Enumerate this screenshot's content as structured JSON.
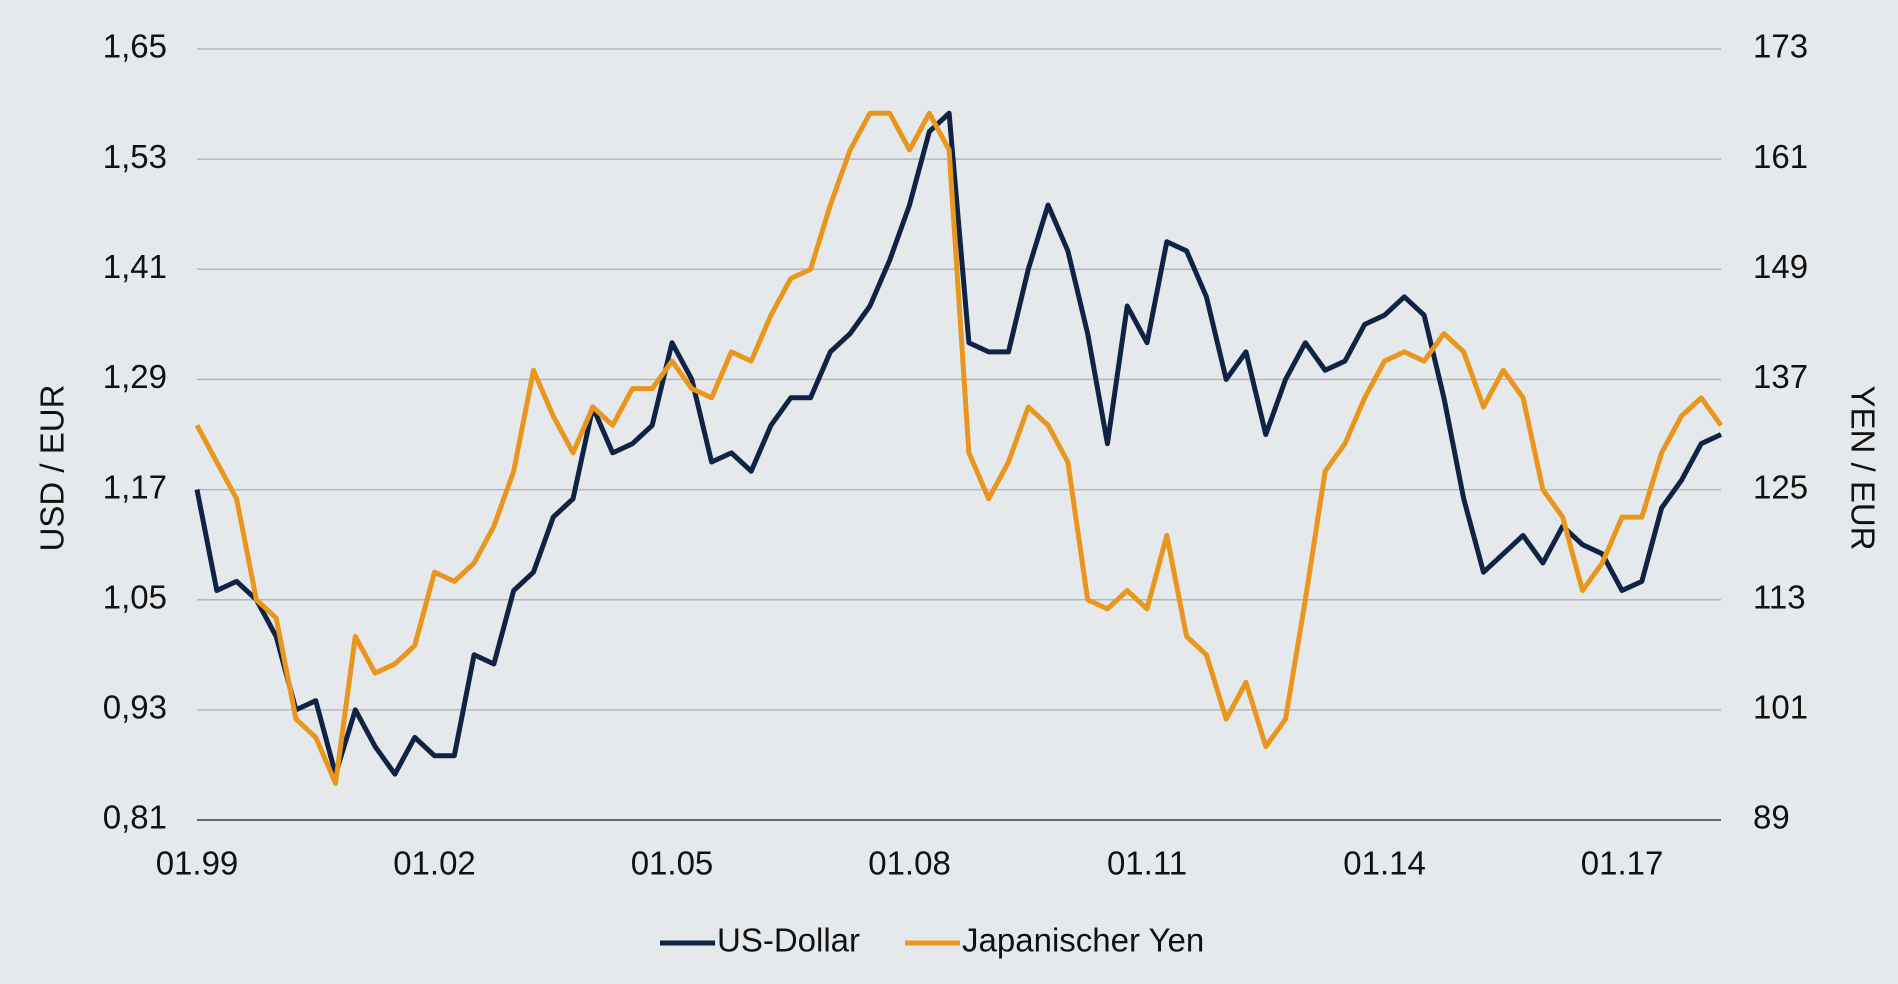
{
  "chart_data": {
    "type": "line",
    "y_label": "USD / EUR",
    "y2_label": "YEN / EUR",
    "x": [
      "01.99",
      "04.99",
      "07.99",
      "10.99",
      "01.00",
      "04.00",
      "07.00",
      "10.00",
      "01.01",
      "04.01",
      "07.01",
      "10.01",
      "01.02",
      "04.02",
      "07.02",
      "10.02",
      "01.03",
      "04.03",
      "07.03",
      "10.03",
      "01.04",
      "04.04",
      "07.04",
      "10.04",
      "01.05",
      "04.05",
      "07.05",
      "10.05",
      "01.06",
      "04.06",
      "07.06",
      "10.06",
      "01.07",
      "04.07",
      "07.07",
      "10.07",
      "01.08",
      "04.08",
      "07.08",
      "10.08",
      "01.09",
      "04.09",
      "07.09",
      "10.09",
      "01.10",
      "04.10",
      "07.10",
      "10.10",
      "01.11",
      "04.11",
      "07.11",
      "10.11",
      "01.12",
      "04.12",
      "07.12",
      "10.12",
      "01.13",
      "04.13",
      "07.13",
      "10.13",
      "01.14",
      "04.14",
      "07.14",
      "10.14",
      "01.15",
      "04.15",
      "07.15",
      "10.15",
      "01.16",
      "04.16",
      "07.16",
      "10.16",
      "01.17",
      "04.17",
      "07.17",
      "10.17",
      "01.18",
      "04.18"
    ],
    "xticks": [
      "01.99",
      "01.02",
      "01.05",
      "01.08",
      "01.11",
      "01.14",
      "01.17"
    ],
    "series": [
      {
        "name": "US-Dollar",
        "color": "#0f2444",
        "axis": "y",
        "values": [
          1.17,
          1.06,
          1.07,
          1.05,
          1.01,
          0.93,
          0.94,
          0.86,
          0.93,
          0.89,
          0.86,
          0.9,
          0.88,
          0.88,
          0.99,
          0.98,
          1.06,
          1.08,
          1.14,
          1.16,
          1.26,
          1.21,
          1.22,
          1.24,
          1.33,
          1.29,
          1.2,
          1.21,
          1.19,
          1.24,
          1.27,
          1.27,
          1.32,
          1.34,
          1.37,
          1.42,
          1.48,
          1.56,
          1.58,
          1.33,
          1.32,
          1.32,
          1.41,
          1.48,
          1.43,
          1.34,
          1.22,
          1.37,
          1.33,
          1.44,
          1.43,
          1.38,
          1.29,
          1.32,
          1.23,
          1.29,
          1.33,
          1.3,
          1.31,
          1.35,
          1.36,
          1.38,
          1.36,
          1.27,
          1.16,
          1.08,
          1.1,
          1.12,
          1.09,
          1.13,
          1.11,
          1.1,
          1.06,
          1.07,
          1.15,
          1.18,
          1.22,
          1.23
        ]
      },
      {
        "name": "Japanischer Yen",
        "color": "#e8961e",
        "axis": "y2",
        "values": [
          132,
          128,
          124,
          113,
          111,
          100,
          98,
          93,
          109,
          105,
          106,
          108,
          116,
          115,
          117,
          121,
          127,
          138,
          133,
          129,
          134,
          132,
          136,
          136,
          139,
          136,
          135,
          140,
          139,
          144,
          148,
          149,
          156,
          162,
          166,
          166,
          162,
          166,
          162,
          129,
          124,
          128,
          134,
          132,
          128,
          113,
          112,
          114,
          112,
          120,
          109,
          107,
          100,
          104,
          97,
          100,
          113,
          127,
          130,
          135,
          139,
          140,
          139,
          142,
          140,
          134,
          138,
          135,
          125,
          122,
          114,
          117,
          122,
          122,
          129,
          133,
          135,
          132
        ]
      }
    ],
    "ylim": [
      0.81,
      1.65
    ],
    "yticks": [
      {
        "value": 0.81,
        "label": "0,81"
      },
      {
        "value": 0.93,
        "label": "0,93"
      },
      {
        "value": 1.05,
        "label": "1,05"
      },
      {
        "value": 1.17,
        "label": "1,17"
      },
      {
        "value": 1.29,
        "label": "1,29"
      },
      {
        "value": 1.41,
        "label": "1,41"
      },
      {
        "value": 1.53,
        "label": "1,53"
      },
      {
        "value": 1.65,
        "label": "1,65"
      }
    ],
    "y2lim": [
      89,
      173
    ],
    "y2ticks": [
      89,
      101,
      113,
      125,
      137,
      149,
      161,
      173
    ],
    "grid": true,
    "legend": "bottom"
  }
}
